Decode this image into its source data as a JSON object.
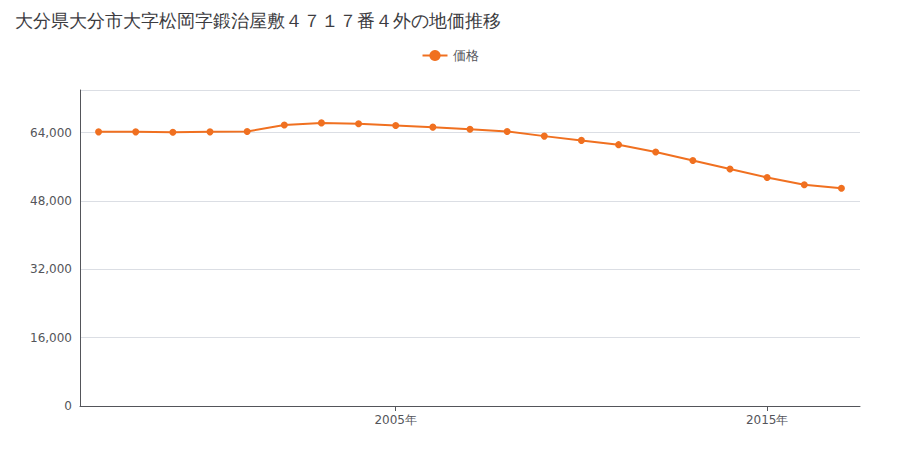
{
  "chart_data": {
    "type": "line",
    "title": "大分県大分市大字松岡字鍛治屋敷４７１７番４外の地価推移",
    "x": [
      1997,
      1998,
      1999,
      2000,
      2001,
      2002,
      2003,
      2004,
      2005,
      2006,
      2007,
      2008,
      2009,
      2010,
      2011,
      2012,
      2013,
      2014,
      2015,
      2016,
      2017
    ],
    "series": [
      {
        "name": "価格",
        "color": "#f07020",
        "values": [
          64200,
          64200,
          64100,
          64200,
          64300,
          65800,
          66300,
          66100,
          65700,
          65300,
          64800,
          64300,
          63200,
          62200,
          61200,
          59500,
          57500,
          55500,
          53500,
          51800,
          51000
        ]
      }
    ],
    "xlim": [
      1996.5,
      2017.5
    ],
    "xticks": [
      {
        "value": 2005,
        "label": "2005年"
      },
      {
        "value": 2015,
        "label": "2015年"
      }
    ],
    "ylim": [
      0,
      74000
    ],
    "yticks": [
      0,
      {
        "value": 16000,
        "label": "16,000"
      },
      {
        "value": 32000,
        "label": "32,000"
      },
      {
        "value": 48000,
        "label": "48,000"
      },
      {
        "value": 64000,
        "label": "64,000"
      }
    ],
    "grid": true,
    "legend": "top",
    "marker": "circle"
  }
}
